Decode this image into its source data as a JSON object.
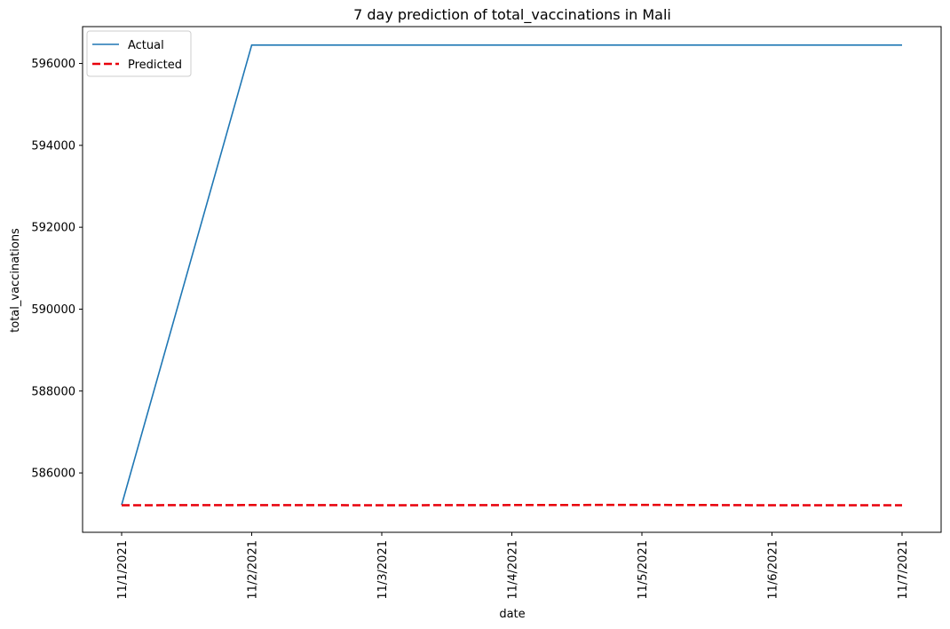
{
  "chart_data": {
    "type": "line",
    "title": "7 day prediction of total_vaccinations in Mali",
    "xlabel": "date",
    "ylabel": "total_vaccinations",
    "categories": [
      "11/1/2021",
      "11/2/2021",
      "11/3/2021",
      "11/4/2021",
      "11/5/2021",
      "11/6/2021",
      "11/7/2021"
    ],
    "yticks": [
      586000,
      588000,
      590000,
      592000,
      594000,
      596000
    ],
    "ylim": [
      584550,
      596900
    ],
    "grid": false,
    "legend_position": "top-left",
    "series": [
      {
        "name": "Actual",
        "color": "#1f77b4",
        "style": "solid",
        "values": [
          585220,
          596450,
          596450,
          596450,
          596450,
          596450,
          596450
        ]
      },
      {
        "name": "Predicted",
        "color": "#e8000b",
        "style": "dashed",
        "values": [
          585210,
          585215,
          585210,
          585215,
          585220,
          585210,
          585210
        ]
      }
    ]
  }
}
